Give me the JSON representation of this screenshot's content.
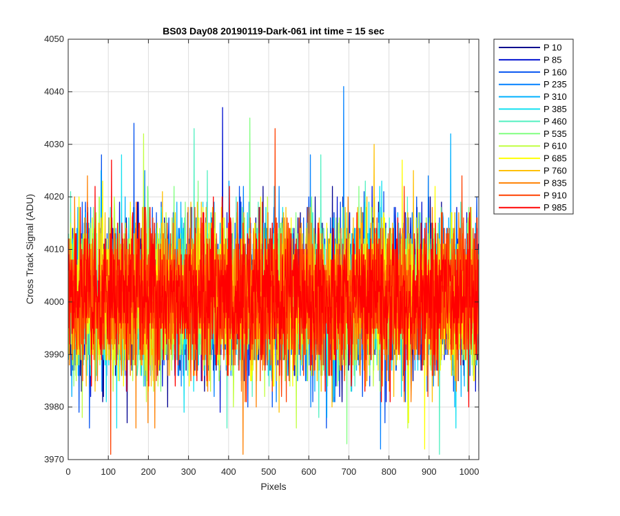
{
  "chart_data": {
    "type": "line",
    "title": "BS03 Day08 20190119-Dark-061 int time = 15 sec",
    "xlabel": "Pixels",
    "ylabel": "Cross Track Signal (ADU)",
    "xlim": [
      0,
      1024
    ],
    "ylim": [
      3970,
      4050
    ],
    "xticks": [
      0,
      100,
      200,
      300,
      400,
      500,
      600,
      700,
      800,
      900,
      1000
    ],
    "yticks": [
      3970,
      3980,
      3990,
      4000,
      4010,
      4020,
      4030,
      4040,
      4050
    ],
    "grid": true,
    "legend_position": "outside-top-right",
    "noise": {
      "mean": 4001,
      "std": 7
    },
    "series": [
      {
        "name": "P 10",
        "color": "#00008f"
      },
      {
        "name": "P 85",
        "color": "#0010d0"
      },
      {
        "name": "P 160",
        "color": "#0050f0"
      },
      {
        "name": "P 235",
        "color": "#0080ff"
      },
      {
        "name": "P 310",
        "color": "#00b0ff"
      },
      {
        "name": "P 385",
        "color": "#10e0f0"
      },
      {
        "name": "P 460",
        "color": "#50f0c0"
      },
      {
        "name": "P 535",
        "color": "#80ff80"
      },
      {
        "name": "P 610",
        "color": "#c0ff40"
      },
      {
        "name": "P 685",
        "color": "#ffff00"
      },
      {
        "name": "P 760",
        "color": "#ffc000"
      },
      {
        "name": "P 835",
        "color": "#ff8000"
      },
      {
        "name": "P 910",
        "color": "#ff4000"
      },
      {
        "name": "P 985",
        "color": "#ff0000"
      }
    ],
    "spikes": [
      {
        "series": 3,
        "x": 686,
        "y": 4041
      },
      {
        "series": 1,
        "x": 384,
        "y": 4037
      },
      {
        "series": 7,
        "x": 452,
        "y": 4035
      },
      {
        "series": 2,
        "x": 163,
        "y": 4034
      },
      {
        "series": 8,
        "x": 187,
        "y": 4032
      },
      {
        "series": 12,
        "x": 515,
        "y": 4033
      },
      {
        "series": 6,
        "x": 313,
        "y": 4033
      },
      {
        "series": 10,
        "x": 762,
        "y": 4030
      },
      {
        "series": 4,
        "x": 953,
        "y": 4032
      },
      {
        "series": 13,
        "x": 107,
        "y": 4027
      },
      {
        "series": 11,
        "x": 435,
        "y": 3971
      },
      {
        "series": 12,
        "x": 105,
        "y": 3971
      },
      {
        "series": 6,
        "x": 925,
        "y": 3971
      },
      {
        "series": 7,
        "x": 694,
        "y": 3973
      },
      {
        "series": 9,
        "x": 888,
        "y": 3972
      },
      {
        "series": 2,
        "x": 52,
        "y": 3976
      },
      {
        "series": 3,
        "x": 778,
        "y": 3972
      }
    ]
  }
}
